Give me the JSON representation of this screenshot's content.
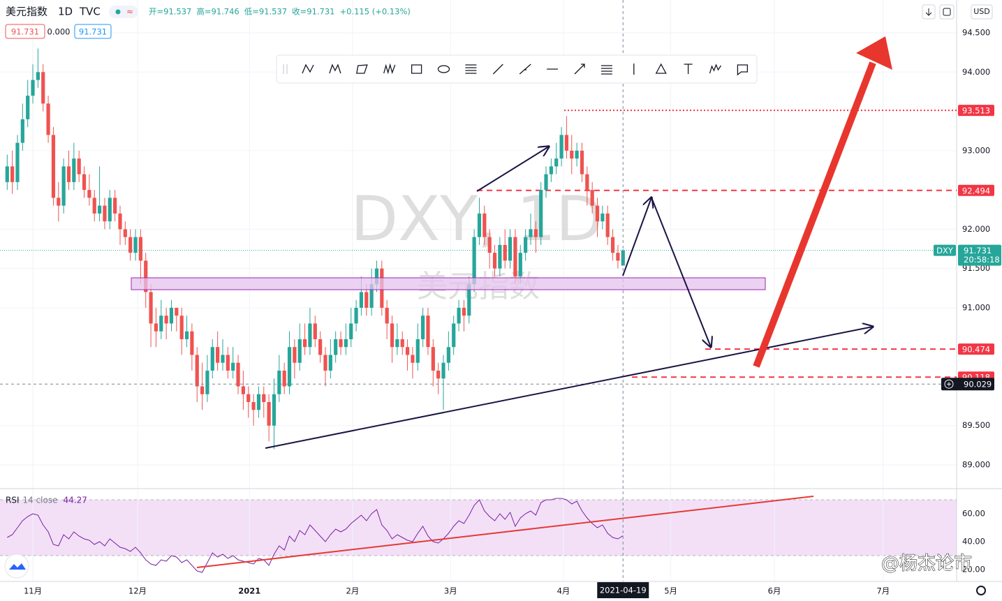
{
  "chart_data": {
    "type": "candlestick",
    "header": {
      "symbol": "美元指数",
      "interval": "1D",
      "source": "TVC",
      "open": "开=91.537",
      "high": "高=91.746",
      "low": "低=91.537",
      "close": "收=91.731",
      "change": "+0.115 (+0.13%)",
      "box_bid": "91.731",
      "box_spread": "0.000",
      "box_ask": "91.731"
    },
    "watermark": "DXY, 1D",
    "watermark_sub": "美元指数",
    "currency": "USD",
    "last_symbol": "DXY",
    "countdown": "20:58:18",
    "crosshair_date": "2021-04-19",
    "crosshair_price": 90.029,
    "signature": "@杨杰论市",
    "up_color": "#26a69a",
    "down_color": "#ef5350",
    "open": [
      92.6,
      92.8,
      92.6,
      93.1,
      93.4,
      93.7,
      93.9,
      94.0,
      93.6,
      93.2,
      92.4,
      92.3,
      92.8,
      92.6,
      92.9,
      92.7,
      92.5,
      92.4,
      92.2,
      92.3,
      92.1,
      92.4,
      92.2,
      92.0,
      91.9,
      91.7,
      91.9,
      91.6,
      91.2,
      90.8,
      90.7,
      90.9,
      90.8,
      91.0,
      90.9,
      90.6,
      90.7,
      90.4,
      90.0,
      89.9,
      90.2,
      90.5,
      90.3,
      90.4,
      90.2,
      90.3,
      90.0,
      89.9,
      89.8,
      89.7,
      89.9,
      89.8,
      89.5,
      89.9,
      90.2,
      90.0,
      90.5,
      90.3,
      90.6,
      90.5,
      90.8,
      90.6,
      90.4,
      90.2,
      90.4,
      90.6,
      90.5,
      90.6,
      90.8,
      91.0,
      91.2,
      91.0,
      91.3,
      91.5,
      91.0,
      90.8,
      90.5,
      90.6,
      90.5,
      90.4,
      90.3,
      90.6,
      90.9,
      90.5,
      90.2,
      90.1,
      90.3,
      90.5,
      90.8,
      91.0,
      90.9,
      91.3,
      91.9,
      92.2,
      91.9,
      91.7,
      91.5,
      91.8,
      91.6,
      91.9,
      91.4,
      91.7,
      91.9,
      92.0,
      91.9,
      92.5,
      92.7,
      92.8,
      92.9,
      93.2,
      93.0,
      92.9,
      93.0,
      92.7,
      92.5,
      92.3,
      92.1,
      92.2,
      91.9,
      91.7,
      91.537
    ],
    "high": [
      92.95,
      93.0,
      93.2,
      93.6,
      93.9,
      94.1,
      94.3,
      94.1,
      93.7,
      93.3,
      92.6,
      92.9,
      93.0,
      93.1,
      93.0,
      92.8,
      92.7,
      92.5,
      92.8,
      92.4,
      92.5,
      92.5,
      92.3,
      92.1,
      92.0,
      92.0,
      92.0,
      91.7,
      91.3,
      91.0,
      91.1,
      91.0,
      91.1,
      91.0,
      91.0,
      90.9,
      90.8,
      90.5,
      90.3,
      90.4,
      90.6,
      90.7,
      90.6,
      90.5,
      90.5,
      90.4,
      90.2,
      90.0,
      89.9,
      90.0,
      90.0,
      89.9,
      90.1,
      90.4,
      90.3,
      90.7,
      90.6,
      90.8,
      90.8,
      91.0,
      90.9,
      90.7,
      90.5,
      90.6,
      90.7,
      90.7,
      90.8,
      91.0,
      91.1,
      91.4,
      91.3,
      91.5,
      91.6,
      91.6,
      91.1,
      90.9,
      90.8,
      90.7,
      90.6,
      90.5,
      90.8,
      91.0,
      91.0,
      90.6,
      90.3,
      90.4,
      90.7,
      90.9,
      91.1,
      91.1,
      91.4,
      92.0,
      92.4,
      92.3,
      92.0,
      91.8,
      91.9,
      92.0,
      92.0,
      92.0,
      91.8,
      92.0,
      92.2,
      92.1,
      92.6,
      92.8,
      92.9,
      93.1,
      93.3,
      93.44,
      93.2,
      93.1,
      93.1,
      92.8,
      92.6,
      92.4,
      92.3,
      92.3,
      92.0,
      91.8,
      91.746
    ],
    "low": [
      92.5,
      92.45,
      92.5,
      93.0,
      93.3,
      93.6,
      93.8,
      93.5,
      93.1,
      92.3,
      92.1,
      92.2,
      92.5,
      92.5,
      92.6,
      92.4,
      92.3,
      92.1,
      92.1,
      92.0,
      92.0,
      92.1,
      91.8,
      91.8,
      91.6,
      91.6,
      91.3,
      91.0,
      90.5,
      90.5,
      90.6,
      90.6,
      90.7,
      90.7,
      90.4,
      90.5,
      90.2,
      89.8,
      89.7,
      89.8,
      90.1,
      90.2,
      90.2,
      90.1,
      90.1,
      89.9,
      89.7,
      89.6,
      89.5,
      89.6,
      89.6,
      89.3,
      89.2,
      89.8,
      89.9,
      89.9,
      90.1,
      90.2,
      90.4,
      90.4,
      90.5,
      90.3,
      90.0,
      90.1,
      90.3,
      90.4,
      90.4,
      90.5,
      90.7,
      90.9,
      90.9,
      90.9,
      91.2,
      90.9,
      90.6,
      90.3,
      90.4,
      90.4,
      90.2,
      90.1,
      90.2,
      90.5,
      90.4,
      90.0,
      89.9,
      89.7,
      90.2,
      90.4,
      90.7,
      90.7,
      90.8,
      91.2,
      91.8,
      91.8,
      91.5,
      91.4,
      91.4,
      91.5,
      91.5,
      91.3,
      91.3,
      91.6,
      91.8,
      91.7,
      91.8,
      92.4,
      92.6,
      92.7,
      92.8,
      92.9,
      92.7,
      92.8,
      92.6,
      92.3,
      92.2,
      91.9,
      92.0,
      91.8,
      91.6,
      91.5,
      91.537
    ],
    "close": [
      92.8,
      92.6,
      93.1,
      93.4,
      93.7,
      93.9,
      94.0,
      93.6,
      93.2,
      92.4,
      92.3,
      92.8,
      92.6,
      92.9,
      92.7,
      92.5,
      92.4,
      92.2,
      92.3,
      92.1,
      92.4,
      92.2,
      92.0,
      91.9,
      91.7,
      91.9,
      91.6,
      91.2,
      90.8,
      90.7,
      90.9,
      90.8,
      91.0,
      90.9,
      90.6,
      90.7,
      90.4,
      90.0,
      89.9,
      90.2,
      90.5,
      90.3,
      90.4,
      90.2,
      90.3,
      90.0,
      89.9,
      89.8,
      89.7,
      89.9,
      89.8,
      89.5,
      89.9,
      90.2,
      90.0,
      90.5,
      90.3,
      90.6,
      90.5,
      90.8,
      90.6,
      90.4,
      90.2,
      90.4,
      90.6,
      90.5,
      90.6,
      90.8,
      91.0,
      91.2,
      91.0,
      91.3,
      91.5,
      91.0,
      90.8,
      90.5,
      90.6,
      90.5,
      90.4,
      90.3,
      90.6,
      90.9,
      90.5,
      90.2,
      90.1,
      90.3,
      90.5,
      90.8,
      91.0,
      90.9,
      91.3,
      91.9,
      92.2,
      91.9,
      91.7,
      91.5,
      91.8,
      91.6,
      91.9,
      91.4,
      91.7,
      91.9,
      92.0,
      91.9,
      92.5,
      92.7,
      92.8,
      92.9,
      93.2,
      93.0,
      92.9,
      93.0,
      92.7,
      92.5,
      92.3,
      92.1,
      92.2,
      91.9,
      91.7,
      91.6,
      91.731
    ],
    "xlim": [
      -1.4,
      185
    ],
    "xticks": [
      {
        "value": 5.0,
        "label": "11月"
      },
      {
        "value": 25.4,
        "label": "12月"
      },
      {
        "value": 47.2,
        "label": "2021"
      },
      {
        "value": 67.3,
        "label": "2月"
      },
      {
        "value": 86.4,
        "label": "3月"
      },
      {
        "value": 108.4,
        "label": "4月"
      },
      {
        "value": 129.3,
        "label": "5月"
      },
      {
        "value": 149.5,
        "label": "6月"
      },
      {
        "value": 170.7,
        "label": "7月"
      }
    ],
    "ylim": [
      88.698,
      94.918
    ],
    "yticks": [
      {
        "value": 89,
        "label": "89.000"
      },
      {
        "value": 89.5,
        "label": "89.500"
      },
      {
        "value": 91,
        "label": "91.000"
      },
      {
        "value": 91.5,
        "label": "91.500"
      },
      {
        "value": 92,
        "label": "92.000"
      },
      {
        "value": 93,
        "label": "93.000"
      },
      {
        "value": 94,
        "label": "94.000"
      },
      {
        "value": 94.5,
        "label": "94.500"
      }
    ],
    "grid": true,
    "price_lines": [
      {
        "value": 93.513,
        "style": "dotted",
        "color": "#f23645"
      },
      {
        "value": 92.494,
        "style": "dashed",
        "color": "#f23645"
      },
      {
        "value": 90.474,
        "style": "dashed",
        "color": "#f23645"
      },
      {
        "value": 90.118,
        "style": "dashed",
        "color": "#f23645"
      }
    ],
    "rsi": {
      "name": "RSI",
      "params": "14 close",
      "color": "#7b1fa2",
      "band_color": "#f3e0f7",
      "bands": [
        30,
        70
      ],
      "ylim": [
        11.5,
        78
      ],
      "yticks": [
        {
          "value": 60,
          "label": "60.00"
        },
        {
          "value": 40,
          "label": "40.00"
        },
        {
          "value": 20,
          "label": "20.00"
        }
      ],
      "values": [
        43,
        45,
        50,
        55,
        58,
        60,
        59,
        52,
        47,
        38,
        37,
        45,
        42,
        47,
        44,
        42,
        41,
        38,
        40,
        37,
        42,
        39,
        36,
        35,
        33,
        36,
        32,
        27,
        24,
        23,
        27,
        26,
        30,
        29,
        25,
        27,
        23,
        19,
        18,
        25,
        32,
        29,
        31,
        28,
        30,
        27,
        26,
        25,
        24,
        28,
        27,
        23,
        31,
        37,
        34,
        44,
        40,
        48,
        45,
        52,
        48,
        44,
        40,
        45,
        49,
        47,
        49,
        53,
        56,
        59,
        55,
        60,
        63,
        52,
        48,
        42,
        45,
        43,
        41,
        40,
        46,
        51,
        44,
        40,
        39,
        42,
        46,
        51,
        55,
        53,
        59,
        66,
        70,
        62,
        58,
        55,
        60,
        56,
        61,
        51,
        57,
        60,
        62,
        59,
        68,
        70,
        70,
        71,
        71,
        70,
        67,
        69,
        62,
        57,
        53,
        50,
        52,
        46,
        43,
        42,
        44.27
      ]
    }
  }
}
